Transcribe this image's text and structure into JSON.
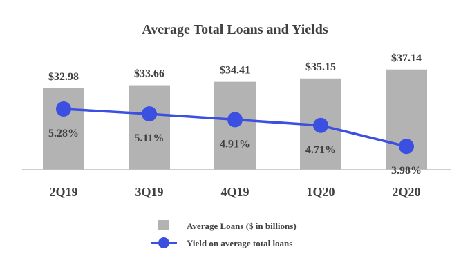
{
  "chart_data": {
    "type": "bar",
    "title": "Average Total Loans and Yields",
    "categories": [
      "2Q19",
      "3Q19",
      "4Q19",
      "1Q20",
      "2Q20"
    ],
    "series": [
      {
        "name": "Average Loans ($ in billions)",
        "type": "bar",
        "values": [
          32.98,
          33.66,
          34.41,
          35.15,
          37.14
        ],
        "labels": [
          "$32.98",
          "$33.66",
          "$34.41",
          "$35.15",
          "$37.14"
        ],
        "color": "#b3b3b3"
      },
      {
        "name": "Yield on average total loans",
        "type": "line",
        "values": [
          5.28,
          5.11,
          4.91,
          4.71,
          3.98
        ],
        "labels": [
          "5.28%",
          "5.11%",
          "4.91%",
          "4.71%",
          "3.98%"
        ],
        "color": "#3b4fe0"
      }
    ],
    "legend": "bottom-center",
    "grid": false
  }
}
